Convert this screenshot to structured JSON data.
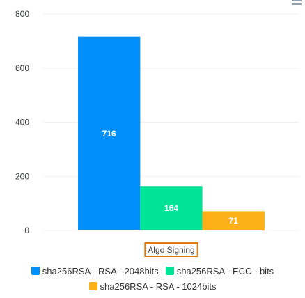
{
  "chart_data": {
    "type": "bar",
    "categories": [
      "Algo Signing"
    ],
    "series": [
      {
        "name": "sha256RSA - RSA - 2048bits",
        "color": "#008FFB",
        "values": [
          716
        ]
      },
      {
        "name": "sha256RSA - ECC - bits",
        "color": "#00E396",
        "values": [
          164
        ]
      },
      {
        "name": "sha256RSA - RSA - 1024bits",
        "color": "#FEB019",
        "values": [
          71
        ]
      }
    ],
    "ylim": [
      0,
      800
    ],
    "yticks": [
      0,
      200,
      400,
      600,
      800
    ],
    "grid": true
  }
}
